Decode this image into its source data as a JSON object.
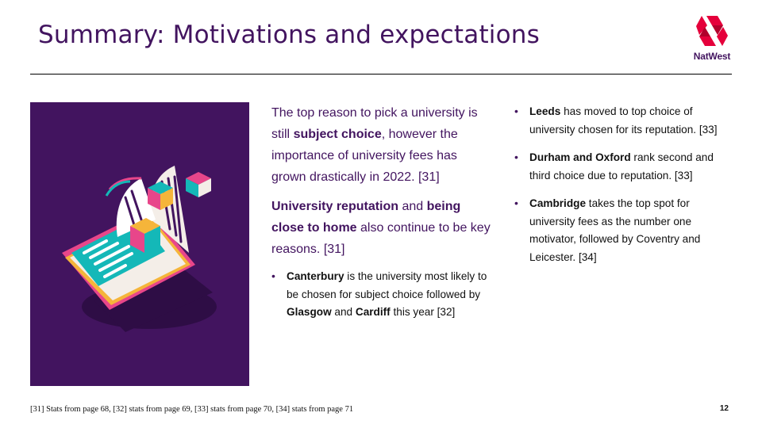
{
  "slide": {
    "title": "Summary: Motivations and expectations",
    "page_number": "12"
  },
  "logo": {
    "text": "NatWest",
    "icon": "natwest-chevron-logo",
    "color": "#e5003b"
  },
  "colors": {
    "brand_purple": "#42145f",
    "accent_teal": "#14b8b8",
    "accent_pink": "#e8468a",
    "accent_yellow": "#f5b53a"
  },
  "mid": {
    "p1": {
      "t1": "The top reason to pick a university is still ",
      "b1": "subject choice",
      "t2": ", however the importance of university fees has grown drastically in 2022. [31]"
    },
    "p2": {
      "b1": "University reputation",
      "t1": " and ",
      "b2": "being close to home",
      "t2": " also continue to be key reasons. [31]"
    },
    "bullet1": {
      "b1": "Canterbury",
      "t1": " is the university most likely to be chosen for subject choice followed by ",
      "b2": "Glasgow",
      "t2": " and ",
      "b3": "Cardiff",
      "t3": " this year [32]"
    }
  },
  "right": {
    "bullet1": {
      "b1": "Leeds",
      "t1": " has moved to top choice of university chosen for its reputation. [33]"
    },
    "bullet2": {
      "b1": "Durham and Oxford",
      "t1": " rank second and third choice due to reputation. [33]"
    },
    "bullet3": {
      "b1": "Cambridge",
      "t1": " takes the top spot for university fees as the number one motivator, followed by Coventry and Leicester.  [34]"
    }
  },
  "footer": {
    "footnote": "[31] Stats from page 68, [32] stats from page 69, [33] stats from page 70, [34] stats from page 71"
  }
}
